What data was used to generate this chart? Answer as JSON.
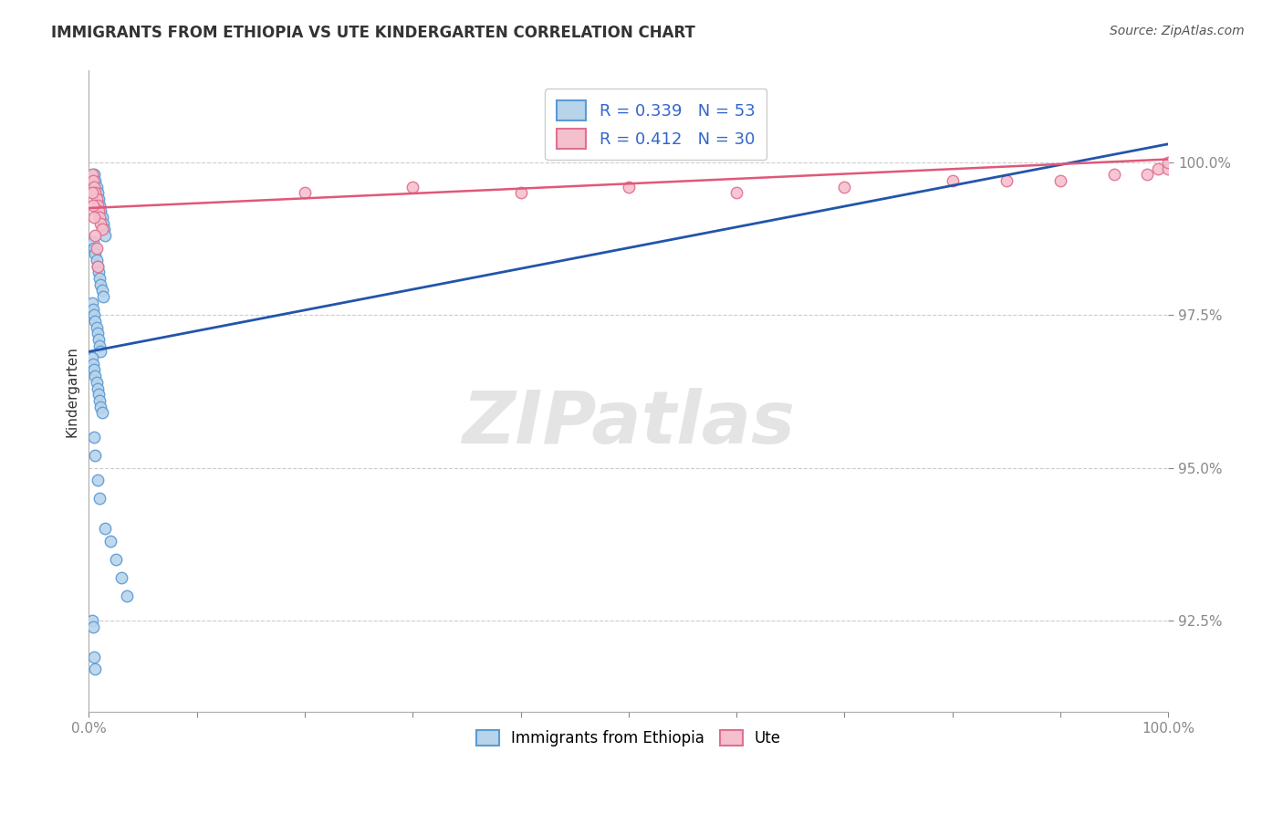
{
  "title": "IMMIGRANTS FROM ETHIOPIA VS UTE KINDERGARTEN CORRELATION CHART",
  "source": "Source: ZipAtlas.com",
  "ylabel": "Kindergarten",
  "xlim": [
    0.0,
    100.0
  ],
  "ylim": [
    91.0,
    101.5
  ],
  "yticks": [
    92.5,
    95.0,
    97.5,
    100.0
  ],
  "ytick_labels": [
    "92.5%",
    "95.0%",
    "97.5%",
    "100.0%"
  ],
  "xtick_positions": [
    0,
    10,
    20,
    30,
    40,
    50,
    60,
    70,
    80,
    90,
    100
  ],
  "blue_color": "#b8d4ea",
  "blue_edge_color": "#5b9bd5",
  "pink_color": "#f5c0ce",
  "pink_edge_color": "#e07090",
  "blue_line_color": "#2255aa",
  "pink_line_color": "#e05878",
  "legend_label_blue": "Immigrants from Ethiopia",
  "legend_label_pink": "Ute",
  "watermark_text": "ZIPatlas",
  "blue_trend_x": [
    0.0,
    100.0
  ],
  "blue_trend_y": [
    96.9,
    100.3
  ],
  "pink_trend_x": [
    0.0,
    100.0
  ],
  "pink_trend_y": [
    99.25,
    100.05
  ],
  "blue_x": [
    0.5,
    0.6,
    0.7,
    0.8,
    0.9,
    1.0,
    1.1,
    1.2,
    1.3,
    1.4,
    1.5,
    0.4,
    0.5,
    0.6,
    0.7,
    0.8,
    0.9,
    1.0,
    1.1,
    1.2,
    1.3,
    0.3,
    0.4,
    0.5,
    0.6,
    0.7,
    0.8,
    0.9,
    1.0,
    1.1,
    0.3,
    0.4,
    0.5,
    0.6,
    0.7,
    0.8,
    0.9,
    1.0,
    1.1,
    1.2,
    0.5,
    0.6,
    0.8,
    1.0,
    1.5,
    2.0,
    2.5,
    3.0,
    3.5,
    0.3,
    0.4,
    0.5,
    0.6
  ],
  "blue_y": [
    99.8,
    99.7,
    99.6,
    99.5,
    99.4,
    99.3,
    99.2,
    99.1,
    99.0,
    98.9,
    98.8,
    98.7,
    98.6,
    98.5,
    98.4,
    98.3,
    98.2,
    98.1,
    98.0,
    97.9,
    97.8,
    97.7,
    97.6,
    97.5,
    97.4,
    97.3,
    97.2,
    97.1,
    97.0,
    96.9,
    96.8,
    96.7,
    96.6,
    96.5,
    96.4,
    96.3,
    96.2,
    96.1,
    96.0,
    95.9,
    95.5,
    95.2,
    94.8,
    94.5,
    94.0,
    93.8,
    93.5,
    93.2,
    92.9,
    92.5,
    92.4,
    91.9,
    91.7
  ],
  "pink_x": [
    0.3,
    0.4,
    0.5,
    0.6,
    0.7,
    0.8,
    0.9,
    1.0,
    1.1,
    1.2,
    0.3,
    0.4,
    0.5,
    0.6,
    0.7,
    0.8,
    20.0,
    30.0,
    40.0,
    50.0,
    60.0,
    70.0,
    80.0,
    85.0,
    90.0,
    95.0,
    98.0,
    99.0,
    100.0,
    100.0
  ],
  "pink_y": [
    99.8,
    99.7,
    99.6,
    99.5,
    99.4,
    99.3,
    99.2,
    99.1,
    99.0,
    98.9,
    99.5,
    99.3,
    99.1,
    98.8,
    98.6,
    98.3,
    99.5,
    99.6,
    99.5,
    99.6,
    99.5,
    99.6,
    99.7,
    99.7,
    99.7,
    99.8,
    99.8,
    99.9,
    99.9,
    100.0
  ],
  "title_fontsize": 12,
  "axis_label_fontsize": 11,
  "tick_fontsize": 11,
  "legend_fontsize": 13,
  "source_fontsize": 10,
  "background_color": "#ffffff",
  "grid_color": "#cccccc",
  "marker_size": 9
}
